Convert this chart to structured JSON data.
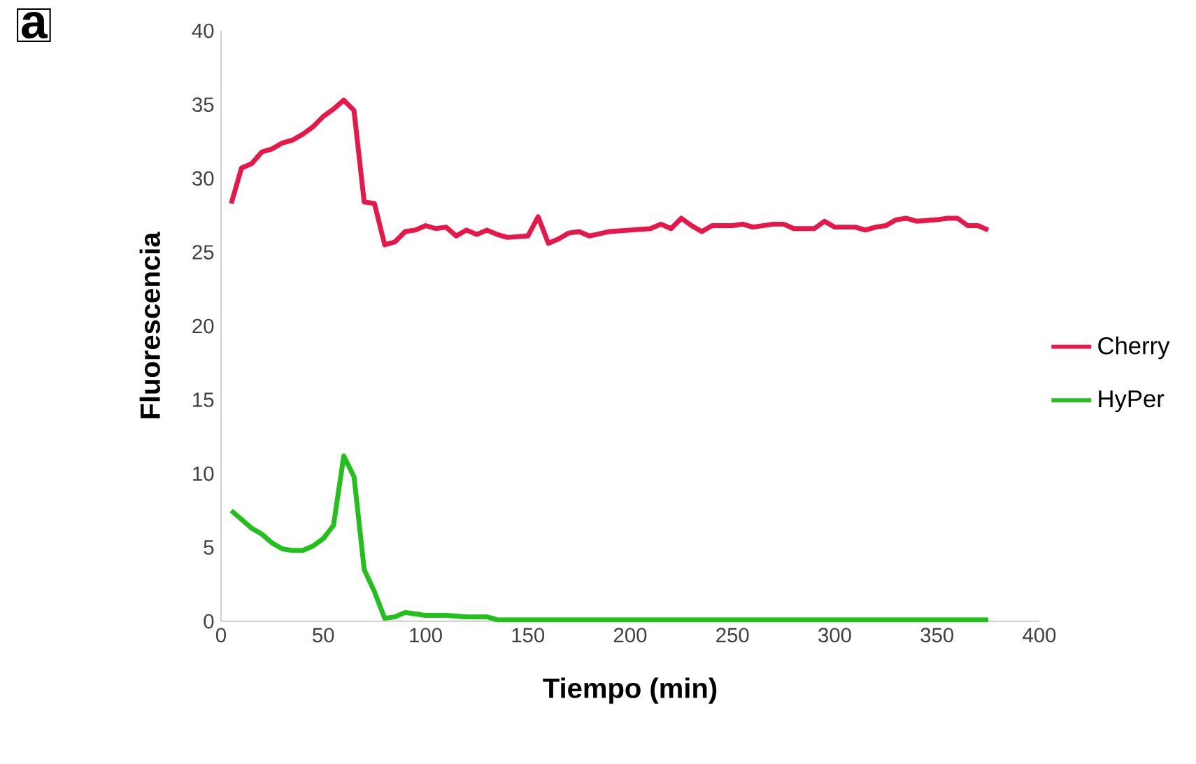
{
  "chart_data": {
    "type": "line",
    "xlabel": "Tiempo (min)",
    "ylabel": "Fluorescencia",
    "annotations": [
      "a"
    ],
    "xlim": [
      0,
      400
    ],
    "xticks": [
      0,
      50,
      100,
      150,
      200,
      250,
      300,
      350,
      400
    ],
    "ylim": [
      0,
      40
    ],
    "yticks": [
      0,
      5,
      10,
      15,
      20,
      25,
      30,
      35,
      40
    ],
    "legend": "right",
    "grid": false,
    "marker": "none",
    "line_style": "solid",
    "series": [
      {
        "name": "Cherry",
        "color": "#e8174a",
        "x": [
          5,
          10,
          15,
          20,
          25,
          30,
          35,
          40,
          45,
          50,
          55,
          60,
          65,
          70,
          75,
          80,
          85,
          90,
          95,
          100,
          105,
          110,
          115,
          120,
          125,
          130,
          135,
          140,
          150,
          155,
          160,
          165,
          170,
          175,
          180,
          190,
          200,
          210,
          215,
          220,
          225,
          230,
          235,
          240,
          250,
          255,
          260,
          270,
          275,
          280,
          290,
          295,
          300,
          310,
          315,
          320,
          325,
          330,
          335,
          340,
          350,
          355,
          360,
          365,
          370,
          375
        ],
        "values": [
          28.3,
          30.7,
          31,
          31.8,
          32,
          32.4,
          32.6,
          33,
          33.5,
          34.2,
          34.7,
          35.3,
          34.6,
          28.4,
          28.3,
          25.5,
          25.7,
          26.4,
          26.5,
          26.8,
          26.6,
          26.7,
          26.1,
          26.5,
          26.2,
          26.5,
          26.2,
          26,
          26.1,
          27.4,
          25.6,
          25.9,
          26.3,
          26.4,
          26.1,
          26.4,
          26.5,
          26.6,
          26.9,
          26.6,
          27.3,
          26.8,
          26.4,
          26.8,
          26.8,
          26.9,
          26.7,
          26.9,
          26.9,
          26.6,
          26.6,
          27.1,
          26.7,
          26.7,
          26.5,
          26.7,
          26.8,
          27.2,
          27.3,
          27.1,
          27.2,
          27.3,
          27.3,
          26.8,
          26.8,
          26.5
        ]
      },
      {
        "name": "HyPer",
        "color": "#22c01a",
        "x": [
          5,
          10,
          15,
          20,
          25,
          30,
          35,
          40,
          45,
          50,
          55,
          60,
          65,
          70,
          75,
          80,
          85,
          90,
          95,
          100,
          110,
          120,
          130,
          135,
          150,
          200,
          250,
          300,
          350,
          375
        ],
        "values": [
          7.5,
          6.9,
          6.3,
          5.9,
          5.3,
          4.9,
          4.8,
          4.8,
          5.1,
          5.6,
          6.5,
          11.2,
          9.8,
          3.5,
          2,
          0.2,
          0.3,
          0.6,
          0.5,
          0.4,
          0.4,
          0.3,
          0.3,
          0.1,
          0.1,
          0.1,
          0.1,
          0.1,
          0.1,
          0.1
        ]
      }
    ]
  }
}
